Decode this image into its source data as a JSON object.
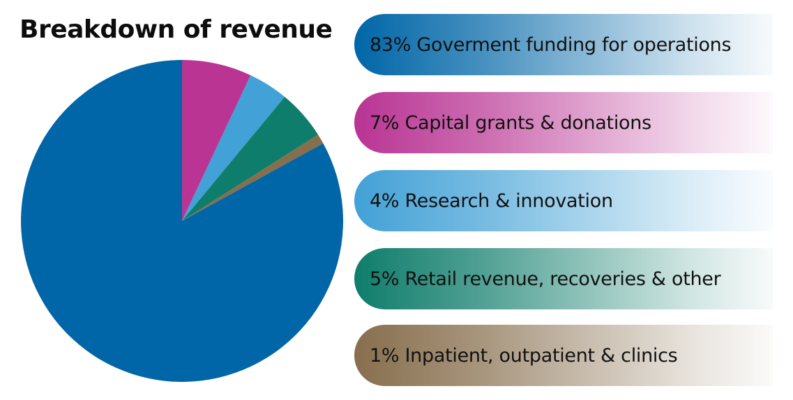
{
  "title": "Breakdown of revenue",
  "chart_data": {
    "type": "pie",
    "title": "Breakdown of revenue",
    "slices": [
      {
        "label": "Goverment funding for operations",
        "percent_label": "83%",
        "value": 83,
        "color": "#0066A7"
      },
      {
        "label": "Capital grants & donations",
        "percent_label": "7%",
        "value": 7,
        "color": "#B93493"
      },
      {
        "label": "Research & innovation",
        "percent_label": "4%",
        "value": 4,
        "color": "#42A1D6"
      },
      {
        "label": "Retail revenue, recoveries & other",
        "percent_label": "5%",
        "value": 5,
        "color": "#0F7D6B"
      },
      {
        "label": "Inpatient, outpatient & clinics",
        "percent_label": "1%",
        "value": 1,
        "color": "#876E4D"
      }
    ]
  },
  "legend": [
    {
      "text": "83% Goverment funding for operations"
    },
    {
      "text": "7% Capital grants & donations"
    },
    {
      "text": "4% Research & innovation"
    },
    {
      "text": "5% Retail revenue, recoveries & other"
    },
    {
      "text": "1% Inpatient, outpatient & clinics"
    }
  ]
}
